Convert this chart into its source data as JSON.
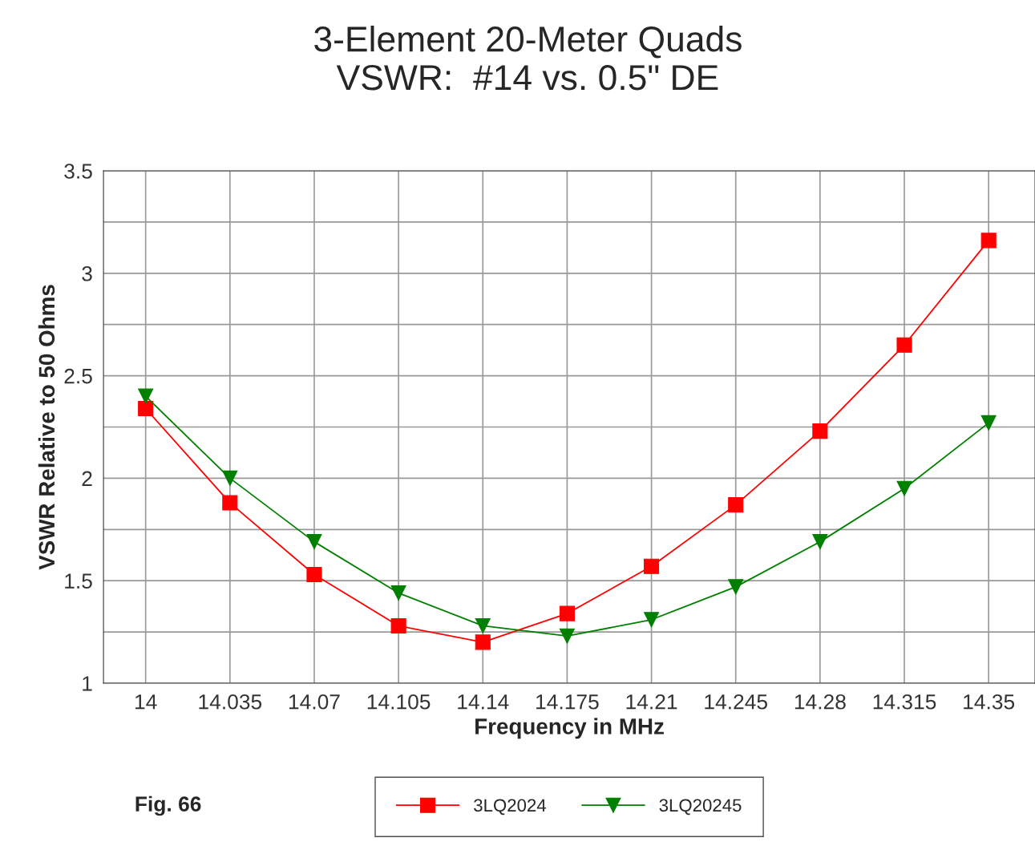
{
  "chart_data": {
    "type": "line",
    "title": "3-Element 20-Meter Quads\nVSWR:  #14 vs. 0.5\" DE",
    "xlabel": "Frequency in MHz",
    "ylabel": "VSWR Relative to 50 Ohms",
    "categories": [
      "14",
      "14.035",
      "14.07",
      "14.105",
      "14.14",
      "14.175",
      "14.21",
      "14.245",
      "14.28",
      "14.315",
      "14.35"
    ],
    "series": [
      {
        "name": "3LQ2024",
        "color": "#ff0000",
        "marker": "square",
        "values": [
          2.34,
          1.88,
          1.53,
          1.28,
          1.2,
          1.34,
          1.57,
          1.87,
          2.23,
          2.65,
          3.16
        ]
      },
      {
        "name": "3LQ20245",
        "color": "#008000",
        "marker": "triangle",
        "values": [
          2.4,
          2.0,
          1.69,
          1.44,
          1.28,
          1.23,
          1.31,
          1.47,
          1.69,
          1.95,
          2.27
        ]
      }
    ],
    "ylim": [
      1,
      3.5
    ],
    "yticks": [
      1,
      {
        "value": 1.25,
        "label": null
      },
      1.5,
      {
        "value": 1.75,
        "label": null
      },
      2,
      {
        "value": 2.25,
        "label": null
      },
      2.5,
      {
        "value": 2.75,
        "label": null
      },
      3,
      {
        "value": 3.25,
        "label": null
      },
      3.5
    ],
    "grid": true,
    "legend": "bottom",
    "line_style": "solid",
    "annotations": [
      "Fig. 66"
    ]
  }
}
